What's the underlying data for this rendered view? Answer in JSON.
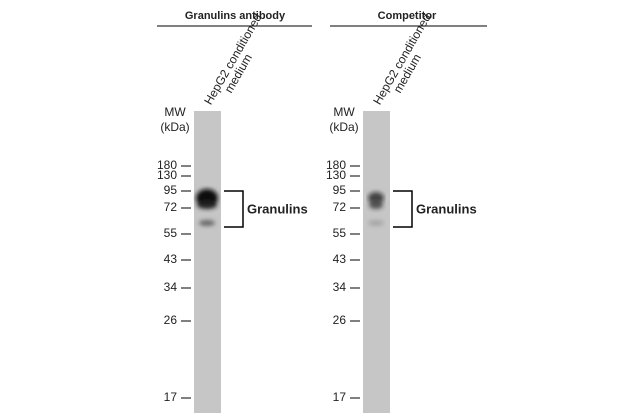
{
  "panels": [
    {
      "title": "Granulins antibody",
      "lane_label": [
        "HepG2 conditioned",
        "medium"
      ],
      "mw_label": [
        "MW",
        "(kDa)"
      ],
      "markers": [
        "180",
        "130",
        "95",
        "72",
        "55",
        "43",
        "34",
        "26",
        "17"
      ],
      "band_label": "Granulins"
    },
    {
      "title": "Competitor",
      "lane_label": [
        "HepG2 conditioned",
        "medium"
      ],
      "mw_label": [
        "MW",
        "(kDa)"
      ],
      "markers": [
        "180",
        "130",
        "95",
        "72",
        "55",
        "43",
        "34",
        "26",
        "17"
      ],
      "band_label": "Granulins"
    }
  ]
}
